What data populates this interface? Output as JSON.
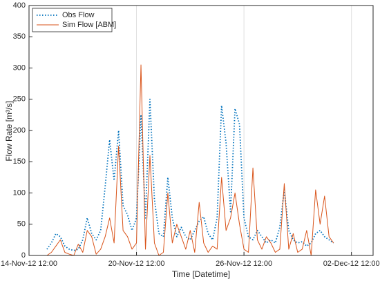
{
  "chart_data": {
    "type": "line",
    "xlabel": "Time [Datetime]",
    "ylabel": "Flow Rate [m³/s]",
    "x": [
      "2012-11-15T12:00",
      "2012-11-15T18:00",
      "2012-11-16T00:00",
      "2012-11-16T06:00",
      "2012-11-16T12:00",
      "2012-11-16T18:00",
      "2012-11-17T00:00",
      "2012-11-17T06:00",
      "2012-11-17T12:00",
      "2012-11-17T18:00",
      "2012-11-18T00:00",
      "2012-11-18T06:00",
      "2012-11-18T12:00",
      "2012-11-18T18:00",
      "2012-11-19T00:00",
      "2012-11-19T06:00",
      "2012-11-19T12:00",
      "2012-11-19T18:00",
      "2012-11-20T00:00",
      "2012-11-20T06:00",
      "2012-11-20T12:00",
      "2012-11-20T18:00",
      "2012-11-21T00:00",
      "2012-11-21T06:00",
      "2012-11-21T12:00",
      "2012-11-21T18:00",
      "2012-11-22T00:00",
      "2012-11-22T06:00",
      "2012-11-22T12:00",
      "2012-11-22T18:00",
      "2012-11-23T00:00",
      "2012-11-23T06:00",
      "2012-11-23T12:00",
      "2012-11-23T18:00",
      "2012-11-24T00:00",
      "2012-11-24T06:00",
      "2012-11-24T12:00",
      "2012-11-24T18:00",
      "2012-11-25T00:00",
      "2012-11-25T06:00",
      "2012-11-25T12:00",
      "2012-11-25T18:00",
      "2012-11-26T00:00",
      "2012-11-26T06:00",
      "2012-11-26T12:00",
      "2012-11-26T18:00",
      "2012-11-27T00:00",
      "2012-11-27T06:00",
      "2012-11-27T12:00",
      "2012-11-27T18:00",
      "2012-11-28T00:00",
      "2012-11-28T06:00",
      "2012-11-28T12:00",
      "2012-11-28T18:00",
      "2012-11-29T00:00",
      "2012-11-29T06:00",
      "2012-11-29T12:00",
      "2012-11-29T18:00",
      "2012-11-30T00:00",
      "2012-11-30T06:00",
      "2012-11-30T12:00",
      "2012-11-30T18:00",
      "2012-12-01T00:00",
      "2012-12-01T06:00",
      "2012-12-01T12:00"
    ],
    "series": [
      {
        "name": "Obs Flow",
        "color": "#0072BD",
        "style": "dotted",
        "values": [
          10,
          20,
          35,
          30,
          15,
          10,
          8,
          10,
          25,
          60,
          35,
          25,
          40,
          110,
          185,
          120,
          200,
          80,
          65,
          40,
          60,
          225,
          60,
          250,
          90,
          35,
          30,
          125,
          60,
          30,
          45,
          30,
          25,
          40,
          55,
          62,
          35,
          25,
          60,
          240,
          180,
          70,
          235,
          210,
          60,
          30,
          25,
          40,
          30,
          20,
          25,
          20,
          45,
          105,
          40,
          25,
          20,
          22,
          15,
          20,
          35,
          40,
          30,
          25,
          20
        ]
      },
      {
        "name": "Sim Flow [ABM]",
        "color": "#D95319",
        "style": "solid",
        "values": [
          0,
          5,
          15,
          25,
          5,
          2,
          0,
          18,
          5,
          40,
          30,
          2,
          10,
          30,
          60,
          20,
          175,
          40,
          30,
          10,
          20,
          305,
          10,
          160,
          20,
          0,
          5,
          100,
          20,
          50,
          30,
          10,
          40,
          5,
          85,
          20,
          5,
          15,
          10,
          125,
          40,
          60,
          100,
          50,
          10,
          5,
          140,
          25,
          10,
          30,
          20,
          5,
          10,
          115,
          10,
          35,
          5,
          10,
          40,
          0,
          105,
          50,
          95,
          30,
          20
        ]
      }
    ],
    "xlim": [
      "2012-11-14T12:00",
      "2012-12-03T17:00"
    ],
    "xticks": [
      {
        "value": "2012-11-14T12:00",
        "label": "14-Nov-12 12:00"
      },
      {
        "value": "2012-11-20T12:00",
        "label": "20-Nov-12 12:00"
      },
      {
        "value": "2012-11-26T12:00",
        "label": "26-Nov-12 12:00"
      },
      {
        "value": "2012-12-02T12:00",
        "label": "02-Dec-12 12:00"
      }
    ],
    "ylim": [
      0,
      400
    ],
    "yticks": [
      0,
      50,
      100,
      150,
      200,
      250,
      300,
      350,
      400
    ],
    "grid": "x",
    "legend": "upper left"
  }
}
